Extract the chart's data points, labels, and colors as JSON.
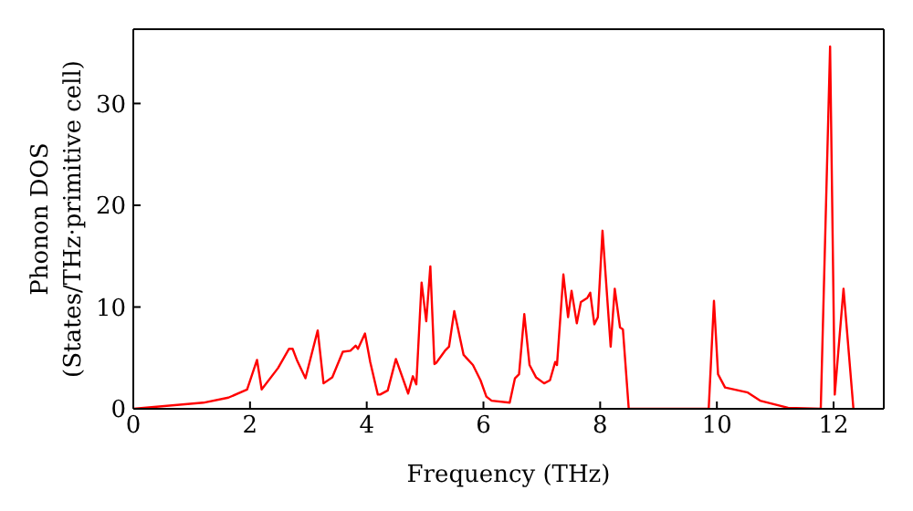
{
  "chart_data": {
    "type": "line",
    "xlabel": "Frequency (THz)",
    "ylabel": "Phonon DOS\n(States/THz·primitive cell)",
    "x": [
      0,
      1.2,
      1.63,
      1.95,
      2.12,
      2.2,
      2.48,
      2.67,
      2.73,
      2.81,
      2.95,
      3.16,
      3.26,
      3.41,
      3.59,
      3.72,
      3.81,
      3.85,
      3.97,
      4.06,
      4.19,
      4.23,
      4.36,
      4.5,
      4.71,
      4.79,
      4.85,
      4.94,
      5.02,
      5.09,
      5.16,
      5.19,
      5.34,
      5.41,
      5.5,
      5.66,
      5.82,
      5.95,
      6.05,
      6.14,
      6.45,
      6.54,
      6.61,
      6.7,
      6.79,
      6.9,
      7.04,
      7.14,
      7.23,
      7.26,
      7.37,
      7.45,
      7.51,
      7.6,
      7.67,
      7.78,
      7.83,
      7.9,
      7.96,
      8.04,
      8.18,
      8.25,
      8.34,
      8.39,
      8.49,
      9.86,
      9.95,
      10.02,
      10.14,
      10.53,
      10.74,
      11.22,
      11.78,
      11.94,
      12.02,
      12.17,
      12.34
    ],
    "series": [
      {
        "color": "#ff0000",
        "values": [
          0,
          0.6,
          1.1,
          1.9,
          4.8,
          1.9,
          4.0,
          5.9,
          5.9,
          4.7,
          3.0,
          7.7,
          2.5,
          3.1,
          5.6,
          5.7,
          6.2,
          5.9,
          7.4,
          4.6,
          1.4,
          1.4,
          1.8,
          4.9,
          1.5,
          3.2,
          2.4,
          12.4,
          8.6,
          14.0,
          4.4,
          4.5,
          5.7,
          6.1,
          9.6,
          5.3,
          4.3,
          2.8,
          1.2,
          0.8,
          0.6,
          3.0,
          3.4,
          9.3,
          4.3,
          3.1,
          2.5,
          2.8,
          4.6,
          4.3,
          13.2,
          9.0,
          11.6,
          8.4,
          10.5,
          10.9,
          11.4,
          8.3,
          9.0,
          17.5,
          6.1,
          11.8,
          8.0,
          7.8,
          0,
          0,
          10.6,
          3.4,
          2.1,
          1.6,
          0.8,
          0.1,
          0,
          35.6,
          1.4,
          11.8,
          0
        ]
      }
    ],
    "xlim": [
      0,
      12.86
    ],
    "xticks": [
      0,
      2,
      4,
      6,
      8,
      10,
      12
    ],
    "ylim": [
      0,
      37.3
    ],
    "yticks": [
      0,
      10,
      20,
      30
    ],
    "grid": false,
    "legend": false,
    "marker": "none",
    "line_style": "solid"
  }
}
